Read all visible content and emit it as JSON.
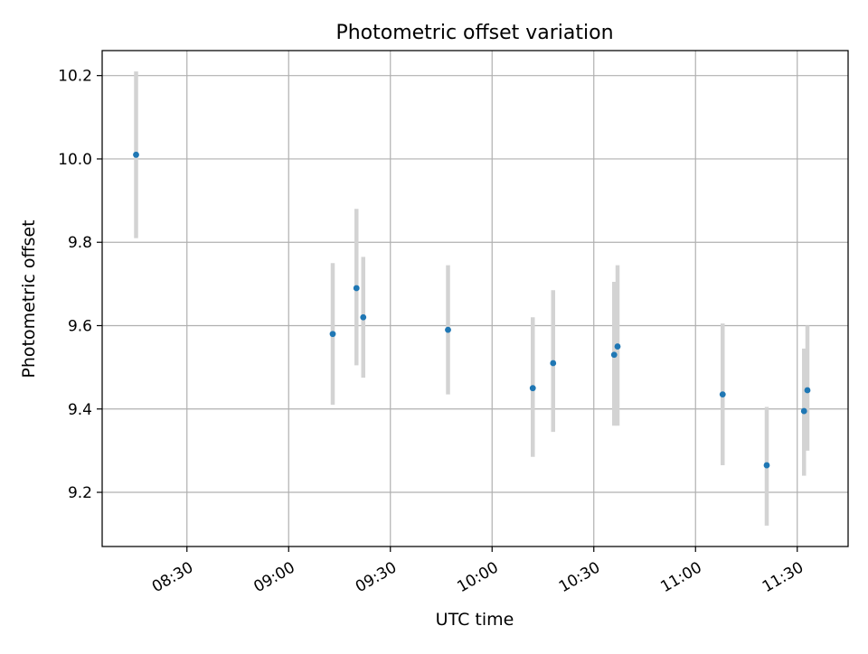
{
  "chart_data": {
    "type": "scatter",
    "title": "Photometric offset variation",
    "xlabel": "UTC time",
    "ylabel": "Photometric offset",
    "x_axis_kind": "time",
    "xlim": [
      "08:05",
      "11:45"
    ],
    "ylim": [
      9.07,
      10.26
    ],
    "x_ticks": [
      "08:30",
      "09:00",
      "09:30",
      "10:00",
      "10:30",
      "11:00",
      "11:30"
    ],
    "y_ticks": [
      "9.2",
      "9.4",
      "9.6",
      "9.8",
      "10.0",
      "10.2"
    ],
    "grid": true,
    "legend": "none",
    "colors": {
      "marker": "#1f77b4",
      "errorbar": "#d3d3d3",
      "grid": "#b0b0b0"
    },
    "points": [
      {
        "time": "08:15",
        "y": 10.01,
        "ymin": 9.81,
        "ymax": 10.21
      },
      {
        "time": "09:13",
        "y": 9.58,
        "ymin": 9.41,
        "ymax": 9.75
      },
      {
        "time": "09:20",
        "y": 9.69,
        "ymin": 9.505,
        "ymax": 9.88
      },
      {
        "time": "09:22",
        "y": 9.62,
        "ymin": 9.475,
        "ymax": 9.765
      },
      {
        "time": "09:47",
        "y": 9.59,
        "ymin": 9.435,
        "ymax": 9.745
      },
      {
        "time": "10:12",
        "y": 9.45,
        "ymin": 9.285,
        "ymax": 9.62
      },
      {
        "time": "10:18",
        "y": 9.51,
        "ymin": 9.345,
        "ymax": 9.685
      },
      {
        "time": "10:36",
        "y": 9.53,
        "ymin": 9.36,
        "ymax": 9.705
      },
      {
        "time": "10:37",
        "y": 9.55,
        "ymin": 9.36,
        "ymax": 9.745
      },
      {
        "time": "11:08",
        "y": 9.435,
        "ymin": 9.265,
        "ymax": 9.605
      },
      {
        "time": "11:21",
        "y": 9.265,
        "ymin": 9.12,
        "ymax": 9.405
      },
      {
        "time": "11:32",
        "y": 9.395,
        "ymin": 9.24,
        "ymax": 9.545
      },
      {
        "time": "11:33",
        "y": 9.445,
        "ymin": 9.3,
        "ymax": 9.6
      }
    ]
  }
}
